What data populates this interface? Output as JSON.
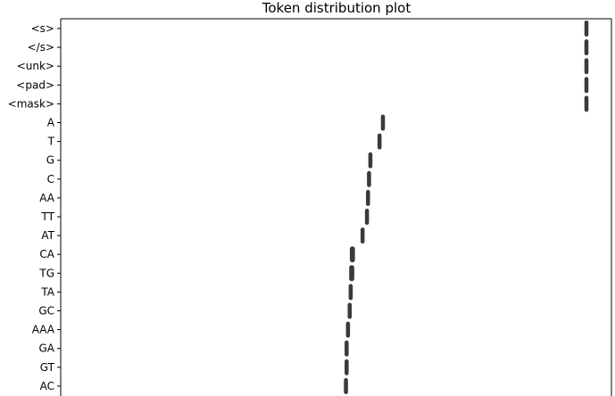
{
  "chart_data": {
    "type": "scatter",
    "title": "Token distribution plot",
    "xlabel": "",
    "ylabel": "",
    "grid": false,
    "mark_color": "#3a3a3a",
    "categories": [
      "<s>",
      "</s>",
      "<unk>",
      "<pad>",
      "<mask>",
      "A",
      "T",
      "G",
      "C",
      "AA",
      "TT",
      "AT",
      "CA",
      "TG",
      "TA",
      "GC",
      "AAA",
      "GA",
      "GT",
      "AC"
    ],
    "values": [
      1.0,
      1.0,
      1.0,
      1.0,
      1.0,
      0.4,
      0.39,
      0.363,
      0.359,
      0.356,
      0.353,
      0.34,
      0.31,
      0.308,
      0.305,
      0.302,
      0.297,
      0.293,
      0.293,
      0.291
    ],
    "spread": [
      0.012,
      0.012,
      0.012,
      0.012,
      0.012,
      0.012,
      0.012,
      0.012,
      0.012,
      0.012,
      0.012,
      0.012,
      0.015,
      0.015,
      0.012,
      0.012,
      0.012,
      0.012,
      0.012,
      0.012
    ]
  }
}
